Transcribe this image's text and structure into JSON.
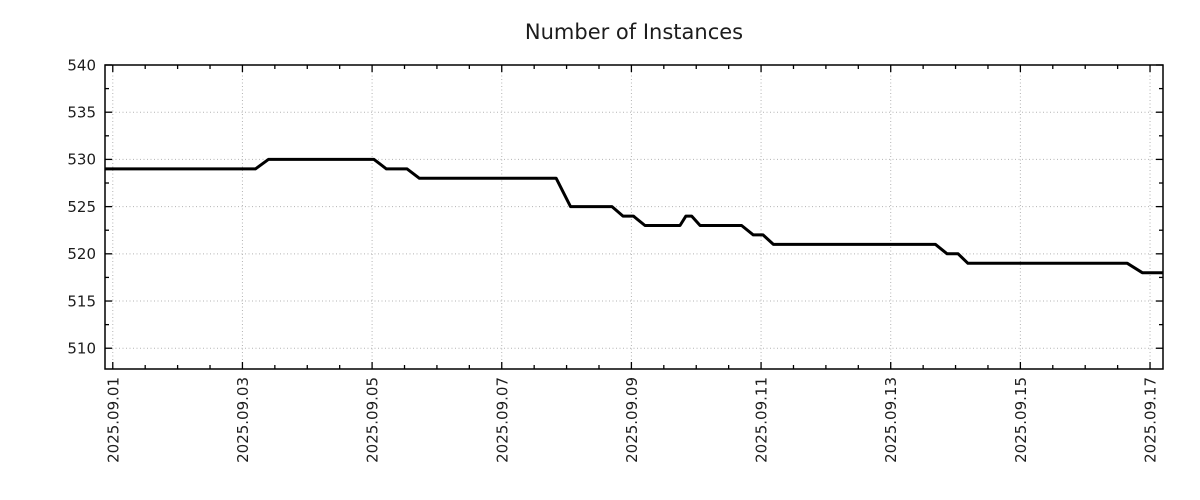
{
  "chart_data": {
    "type": "line",
    "title": "Number of Instances",
    "x_axis": {
      "tick_labels": [
        "2025.09.01",
        "2025.09.03",
        "2025.09.05",
        "2025.09.07",
        "2025.09.09",
        "2025.09.11",
        "2025.09.13",
        "2025.09.15",
        "2025.09.17"
      ],
      "tick_positions_days": [
        0,
        2,
        4,
        6,
        8,
        10,
        12,
        14,
        16
      ],
      "range_days": [
        -0.12,
        16.2
      ],
      "minor_tick_step_days": 0.5
    },
    "y_axis": {
      "tick_labels": [
        "510",
        "515",
        "520",
        "525",
        "530",
        "535",
        "540"
      ],
      "tick_values": [
        510,
        515,
        520,
        525,
        530,
        535,
        540
      ],
      "range": [
        507.8,
        540
      ],
      "minor_tick_step": 2.5
    },
    "points_day_value": [
      [
        -0.12,
        529
      ],
      [
        2.2,
        529
      ],
      [
        2.4,
        530
      ],
      [
        4.03,
        530
      ],
      [
        4.22,
        529
      ],
      [
        4.54,
        529
      ],
      [
        4.73,
        528
      ],
      [
        6.84,
        528
      ],
      [
        7.06,
        525
      ],
      [
        7.7,
        525
      ],
      [
        7.87,
        524
      ],
      [
        8.03,
        524
      ],
      [
        8.21,
        523
      ],
      [
        8.75,
        523
      ],
      [
        8.84,
        524
      ],
      [
        8.93,
        524
      ],
      [
        9.06,
        523
      ],
      [
        9.7,
        523
      ],
      [
        9.88,
        522
      ],
      [
        10.03,
        522
      ],
      [
        10.19,
        521
      ],
      [
        12.69,
        521
      ],
      [
        12.87,
        520
      ],
      [
        13.04,
        520
      ],
      [
        13.19,
        519
      ],
      [
        15.65,
        519
      ],
      [
        15.88,
        518
      ],
      [
        16.2,
        518
      ]
    ],
    "style": {
      "line_color": "#000000",
      "line_width": 3,
      "grid_color": "#b3b3b3",
      "grid_style": "dotted",
      "axis_color": "#000000",
      "text_color": "#1c1c1c",
      "background": "#ffffff",
      "grid": "on",
      "legend": "none"
    }
  }
}
